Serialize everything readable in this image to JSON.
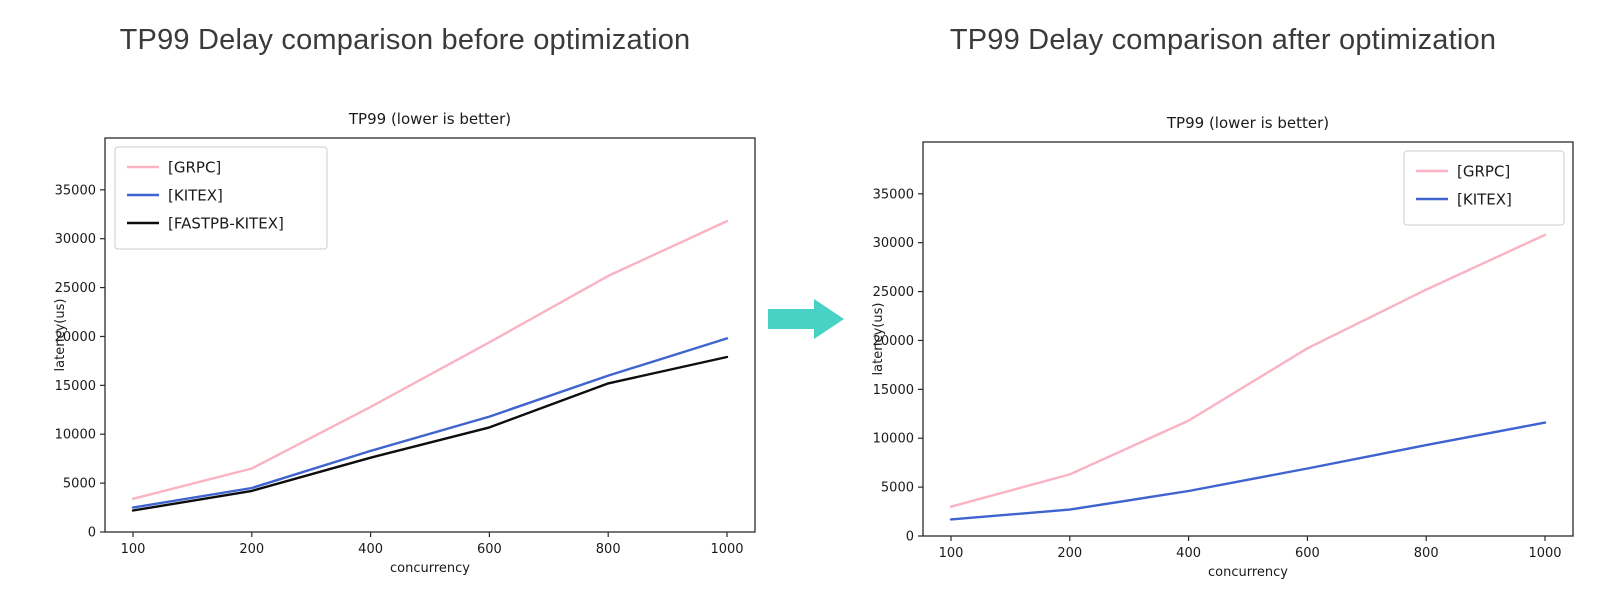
{
  "page": {
    "title_before": "TP99 Delay comparison before optimization",
    "title_after": "TP99 Delay comparison after optimization"
  },
  "arrow": {
    "color": "#48d1c5"
  },
  "chart_data": [
    {
      "type": "line",
      "panel_title": "TP99 Delay comparison before optimization",
      "title": "TP99 (lower is better)",
      "xlabel": "concurrency",
      "ylabel": "latency(us)",
      "categories": [
        "100",
        "200",
        "400",
        "600",
        "800",
        "1000"
      ],
      "yticks": [
        0,
        5000,
        10000,
        15000,
        20000,
        25000,
        30000,
        35000
      ],
      "ylim": [
        0,
        40300
      ],
      "grid": false,
      "legend_position": "upper-left",
      "series": [
        {
          "name": "[GRPC]",
          "color": "#fab3c3",
          "values": [
            3400,
            6500,
            12800,
            19400,
            26200,
            31800
          ]
        },
        {
          "name": "[KITEX]",
          "color": "#3f63cf",
          "values": [
            2500,
            4500,
            8300,
            11800,
            16000,
            19800
          ]
        },
        {
          "name": "[FASTPB-KITEX]",
          "color": "#0d0d0d",
          "values": [
            2200,
            4200,
            7600,
            10700,
            15200,
            17900
          ]
        }
      ]
    },
    {
      "type": "line",
      "panel_title": "TP99 Delay comparison after optimization",
      "title": "TP99 (lower is better)",
      "xlabel": "concurrency",
      "ylabel": "latency(us)",
      "categories": [
        "100",
        "200",
        "400",
        "600",
        "800",
        "1000"
      ],
      "yticks": [
        0,
        5000,
        10000,
        15000,
        20000,
        25000,
        30000,
        35000
      ],
      "ylim": [
        0,
        40300
      ],
      "grid": false,
      "legend_position": "upper-right",
      "series": [
        {
          "name": "[GRPC]",
          "color": "#fab3c3",
          "values": [
            3000,
            6300,
            11800,
            19200,
            25200,
            30800
          ]
        },
        {
          "name": "[KITEX]",
          "color": "#3f63cf",
          "values": [
            1700,
            2700,
            4600,
            6900,
            9300,
            11600
          ]
        }
      ]
    }
  ]
}
